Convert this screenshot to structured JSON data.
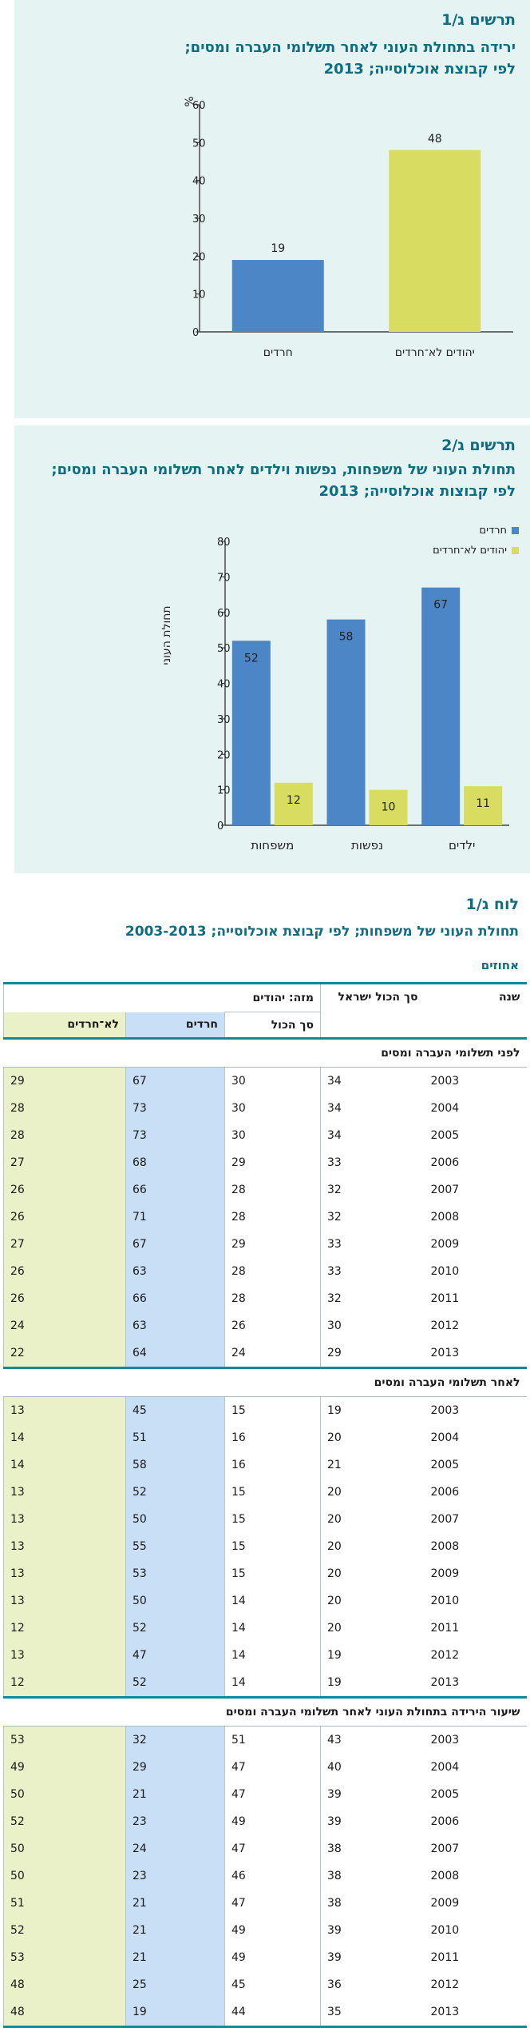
{
  "figure1": {
    "title": "תרשים ג/1",
    "subtitle_line1": "ירידה בתחולת העוני לאחר תשלומי העברה ומסים;",
    "subtitle_line2": "לפי קבוצת אוכלוסייה; 2013"
  },
  "figure2": {
    "title": "תרשים ג/2",
    "subtitle_line1": "תחולת העוני של משפחות, נפשות וילדים לאחר תשלומי העברה ומסים;",
    "subtitle_line2": "לפי קבוצות אוכלוסייה; 2013"
  },
  "chart_data": [
    {
      "type": "bar",
      "categories": [
        "חרדים",
        "יהודים לא־חרדים"
      ],
      "values": [
        19,
        48
      ],
      "colors": [
        "#4d86c6",
        "#d8dc60"
      ],
      "ylabel": "%",
      "ylim": [
        0,
        60
      ],
      "yticks": [
        0,
        10,
        20,
        30,
        40,
        50,
        60
      ],
      "grid": false
    },
    {
      "type": "bar",
      "categories": [
        "משפחות",
        "נפשות",
        "ילדים"
      ],
      "series": [
        {
          "name": "חרדים",
          "values": [
            52,
            58,
            67
          ],
          "color": "#4d86c6"
        },
        {
          "name": "יהודים לא־חרדים",
          "values": [
            12,
            10,
            11
          ],
          "color": "#d8dc60"
        }
      ],
      "ylabel": "תחולת העוני",
      "ylim": [
        0,
        80
      ],
      "yticks": [
        0,
        10,
        20,
        30,
        40,
        50,
        60,
        70,
        80
      ],
      "legend_position": "top-right",
      "grid": false
    }
  ],
  "table": {
    "title": "לוח ג/1",
    "subtitle": "תחולת העוני של משפחות; לפי קבוצת אוכלוסייה; 2003-2013",
    "unit": "אחוזים",
    "headers": {
      "year": "שנה",
      "total_israel": "סך הכול ישראל",
      "jews_group": "מזה: יהודים",
      "jews_total": "סך הכול",
      "haredim": "חרדים",
      "non_haredim": "לא־חרדים"
    },
    "sections": [
      {
        "label": "לפני תשלומי העברה ומסים",
        "rows": [
          [
            "2003",
            "34",
            "30",
            "67",
            "29"
          ],
          [
            "2004",
            "34",
            "30",
            "73",
            "28"
          ],
          [
            "2005",
            "34",
            "30",
            "73",
            "28"
          ],
          [
            "2006",
            "33",
            "29",
            "68",
            "27"
          ],
          [
            "2007",
            "32",
            "28",
            "66",
            "26"
          ],
          [
            "2008",
            "32",
            "28",
            "71",
            "26"
          ],
          [
            "2009",
            "33",
            "29",
            "67",
            "27"
          ],
          [
            "2010",
            "33",
            "28",
            "63",
            "26"
          ],
          [
            "2011",
            "32",
            "28",
            "66",
            "26"
          ],
          [
            "2012",
            "30",
            "26",
            "63",
            "24"
          ],
          [
            "2013",
            "29",
            "24",
            "64",
            "22"
          ]
        ]
      },
      {
        "label": "לאחר תשלומי העברה ומסים",
        "rows": [
          [
            "2003",
            "19",
            "15",
            "45",
            "13"
          ],
          [
            "2004",
            "20",
            "16",
            "51",
            "14"
          ],
          [
            "2005",
            "21",
            "16",
            "58",
            "14"
          ],
          [
            "2006",
            "20",
            "15",
            "52",
            "13"
          ],
          [
            "2007",
            "20",
            "15",
            "50",
            "13"
          ],
          [
            "2008",
            "20",
            "15",
            "55",
            "13"
          ],
          [
            "2009",
            "20",
            "15",
            "53",
            "13"
          ],
          [
            "2010",
            "20",
            "14",
            "50",
            "13"
          ],
          [
            "2011",
            "20",
            "14",
            "52",
            "12"
          ],
          [
            "2012",
            "19",
            "14",
            "47",
            "13"
          ],
          [
            "2013",
            "19",
            "14",
            "52",
            "12"
          ]
        ]
      },
      {
        "label": "שיעור הירידה בתחולת העוני לאחר תשלומי העברה ומסים",
        "rows": [
          [
            "2003",
            "43",
            "51",
            "32",
            "53"
          ],
          [
            "2004",
            "40",
            "47",
            "29",
            "49"
          ],
          [
            "2005",
            "39",
            "47",
            "21",
            "50"
          ],
          [
            "2006",
            "39",
            "49",
            "23",
            "52"
          ],
          [
            "2007",
            "38",
            "47",
            "24",
            "50"
          ],
          [
            "2008",
            "38",
            "46",
            "23",
            "50"
          ],
          [
            "2009",
            "38",
            "47",
            "21",
            "51"
          ],
          [
            "2010",
            "39",
            "49",
            "21",
            "52"
          ],
          [
            "2011",
            "39",
            "49",
            "21",
            "53"
          ],
          [
            "2012",
            "36",
            "45",
            "25",
            "48"
          ],
          [
            "2013",
            "35",
            "44",
            "19",
            "48"
          ]
        ]
      }
    ]
  }
}
